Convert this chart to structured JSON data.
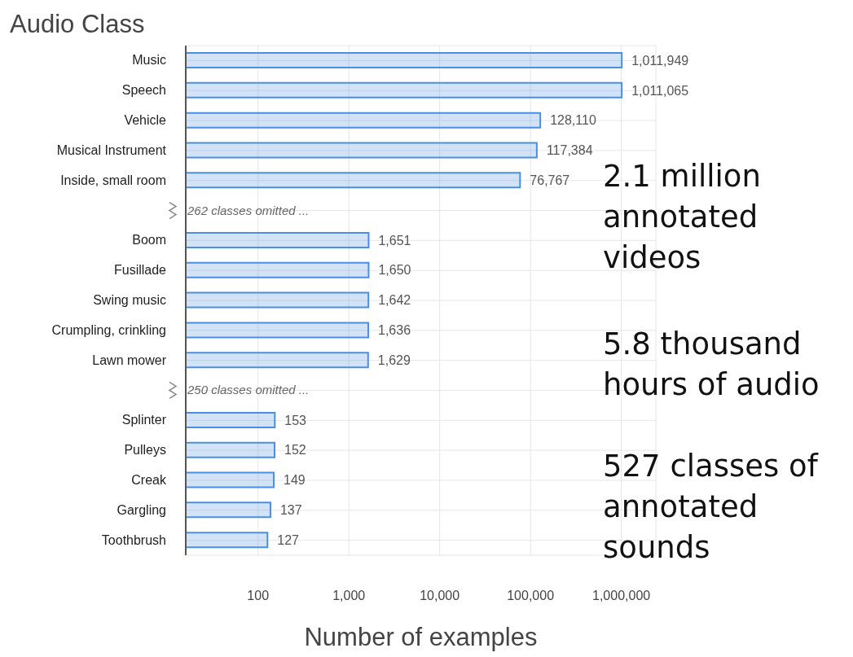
{
  "chart_data": {
    "type": "bar",
    "orientation": "horizontal",
    "ylabel": "Audio Class",
    "xlabel": "Number of examples",
    "categories": [
      "Music",
      "Speech",
      "Vehicle",
      "Musical Instrument",
      "Inside, small room",
      null,
      "Boom",
      "Fusillade",
      "Swing music",
      "Crumpling, crinkling",
      "Lawn mower",
      null,
      "Splinter",
      "Pulleys",
      "Creak",
      "Gargling",
      "Toothbrush"
    ],
    "values": [
      1011949,
      1011065,
      128110,
      117384,
      76767,
      null,
      1651,
      1650,
      1642,
      1636,
      1629,
      null,
      153,
      152,
      149,
      137,
      127
    ],
    "color": "#4a90e2",
    "log": "x",
    "xlim": [
      16,
      2400000
    ],
    "xticks": [
      {
        "value": 100,
        "label": "100"
      },
      {
        "value": 1000,
        "label": "1,000"
      },
      {
        "value": 10000,
        "label": "10,000"
      },
      {
        "value": 100000,
        "label": "100,000"
      },
      {
        "value": 1000000,
        "label": "1,000,000"
      }
    ],
    "grid": true,
    "value_labels": [
      "1,011,949",
      "1,011,065",
      "128,110",
      "117,384",
      "76,767",
      null,
      "1,651",
      "1,650",
      "1,642",
      "1,636",
      "1,629",
      null,
      "153",
      "152",
      "149",
      "137",
      "127"
    ],
    "annotations": [
      "262 classes omitted ...",
      "250 classes omitted ...",
      "2.1 million annotated videos",
      "5.8 thousand hours of audio",
      "527 classes of annotated sounds"
    ]
  }
}
